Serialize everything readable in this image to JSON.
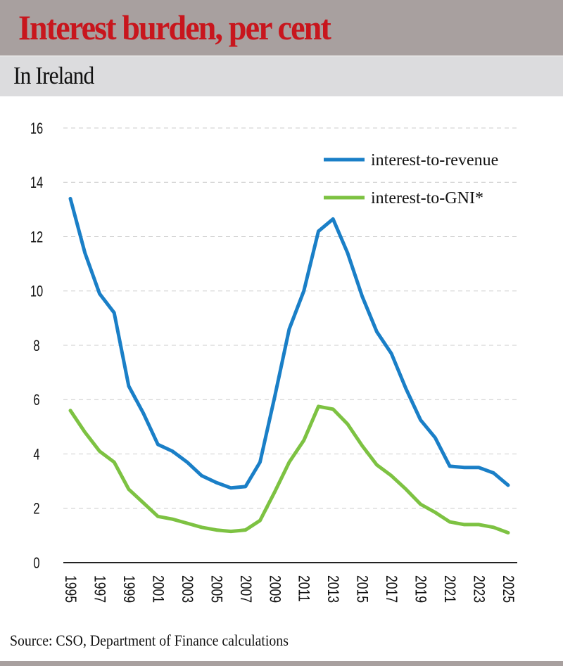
{
  "header": {
    "title": "Interest burden, per cent",
    "subtitle": "In Ireland"
  },
  "footer": {
    "source": "Source: CSO, Department of Finance calculations"
  },
  "chart_data": {
    "type": "line",
    "title": "Interest burden, per cent",
    "subtitle": "In Ireland",
    "xlabel": "",
    "ylabel": "",
    "x": [
      1995,
      1996,
      1997,
      1998,
      1999,
      2000,
      2001,
      2002,
      2003,
      2004,
      2005,
      2006,
      2007,
      2008,
      2009,
      2010,
      2011,
      2012,
      2013,
      2014,
      2015,
      2016,
      2017,
      2018,
      2019,
      2020,
      2021,
      2022,
      2023,
      2024,
      2025
    ],
    "x_ticks": [
      "1995",
      "1997",
      "1999",
      "2001",
      "2003",
      "2005",
      "2007",
      "2009",
      "2011",
      "2013",
      "2015",
      "2017",
      "2019",
      "2021",
      "2023",
      "2025"
    ],
    "y_ticks": [
      "0",
      "2",
      "4",
      "6",
      "8",
      "10",
      "12",
      "14",
      "16"
    ],
    "ylim": [
      0,
      16
    ],
    "grid": "horizontal dashed",
    "legend": "top-right",
    "series": [
      {
        "name": "interest-to-revenue",
        "color": "#1a7fc7",
        "values": [
          13.4,
          11.4,
          9.9,
          9.2,
          6.5,
          5.5,
          4.35,
          4.1,
          3.7,
          3.2,
          2.95,
          2.75,
          2.8,
          3.7,
          6.1,
          8.6,
          10.0,
          12.2,
          12.65,
          11.4,
          9.8,
          8.5,
          7.7,
          6.4,
          5.25,
          4.6,
          3.55,
          3.5,
          3.5,
          3.3,
          2.85
        ]
      },
      {
        "name": "interest-to-GNI*",
        "color": "#7dc242",
        "values": [
          5.6,
          4.8,
          4.1,
          3.7,
          2.7,
          2.2,
          1.7,
          1.6,
          1.45,
          1.3,
          1.2,
          1.15,
          1.2,
          1.55,
          2.6,
          3.7,
          4.5,
          5.75,
          5.65,
          5.1,
          4.3,
          3.6,
          3.2,
          2.7,
          2.15,
          1.85,
          1.5,
          1.4,
          1.4,
          1.3,
          1.1
        ]
      }
    ]
  }
}
